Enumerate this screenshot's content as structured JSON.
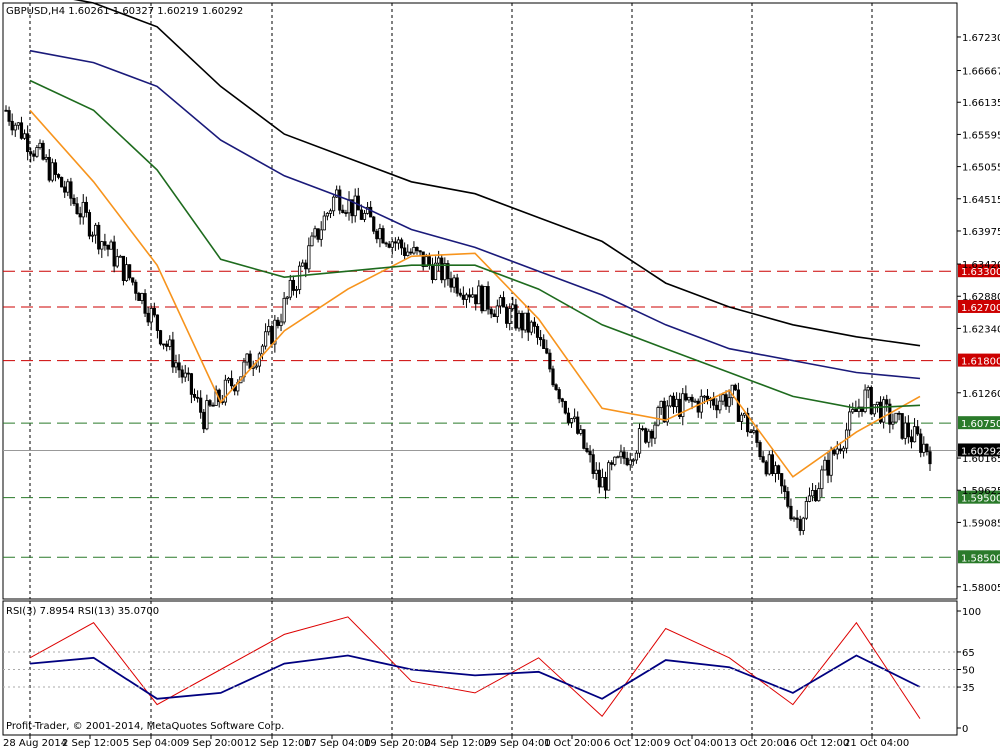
{
  "header": {
    "main_info": "GBPUSD,H4  1.60261 1.60327 1.60219 1.60292",
    "rsi_info": "RSI(3) 7.8954  RSI(13) 35.0700",
    "copyright": "Profit-Trader, © 2001-2014, MetaQuotes Software Corp."
  },
  "colors": {
    "candle": "#000000",
    "ma_orange": "#f7941d",
    "ma_green": "#1e6b1e",
    "ma_navy": "#1a1a7a",
    "ma_black": "#000000",
    "level_red": "#cc0000",
    "level_green": "#2a7a2a",
    "rsi_fast": "#dd0000",
    "rsi_slow": "#000080",
    "current_price_bg": "#000000"
  },
  "price_axis": {
    "ticks": [
      "1.67230",
      "1.66667",
      "1.66135",
      "1.65595",
      "1.65055",
      "1.64515",
      "1.63975",
      "1.63420",
      "1.62880",
      "1.62340",
      "1.61260",
      "1.60165",
      "1.59625",
      "1.59085",
      "1.58005"
    ],
    "levels_red": [
      "1.63300",
      "1.62700",
      "1.61800"
    ],
    "levels_green": [
      "1.60750",
      "1.59500",
      "1.58500"
    ],
    "current_price": "1.60292"
  },
  "rsi_axis": {
    "ticks": [
      "100",
      "65",
      "50",
      "35",
      "0"
    ]
  },
  "time_axis": {
    "labels": [
      "28 Aug 2014",
      "2 Sep 12:00",
      "5 Sep 04:00",
      "9 Sep 20:00",
      "12 Sep 12:00",
      "17 Sep 04:00",
      "19 Sep 20:00",
      "24 Sep 12:00",
      "29 Sep 04:00",
      "1 Oct 20:00",
      "6 Oct 12:00",
      "9 Oct 04:00",
      "13 Oct 20:00",
      "16 Oct 12:00",
      "21 Oct 04:00"
    ]
  },
  "chart_data": {
    "type": "line",
    "symbol": "GBPUSD",
    "timeframe": "H4",
    "ohlc_last": {
      "open": 1.60261,
      "high": 1.60327,
      "low": 1.60219,
      "close": 1.60292
    },
    "ylim": [
      1.578,
      1.678
    ],
    "x": [
      "28 Aug 2014",
      "2 Sep 12:00",
      "5 Sep 04:00",
      "9 Sep 20:00",
      "12 Sep 12:00",
      "17 Sep 04:00",
      "19 Sep 20:00",
      "24 Sep 12:00",
      "29 Sep 04:00",
      "1 Oct 20:00",
      "6 Oct 12:00",
      "9 Oct 04:00",
      "13 Oct 20:00",
      "16 Oct 12:00",
      "21 Oct 04:00"
    ],
    "price_close_approx": [
      1.66,
      1.645,
      1.63,
      1.6085,
      1.622,
      1.646,
      1.637,
      1.63,
      1.623,
      1.597,
      1.61,
      1.612,
      1.591,
      1.612,
      1.6029
    ],
    "series": [
      {
        "name": "MA orange",
        "values": [
          1.66,
          1.648,
          1.634,
          1.611,
          1.623,
          1.63,
          1.6355,
          1.636,
          1.625,
          1.61,
          1.608,
          1.613,
          1.5985,
          1.606,
          1.612
        ]
      },
      {
        "name": "MA green",
        "values": [
          1.665,
          1.66,
          1.65,
          1.635,
          1.632,
          1.633,
          1.634,
          1.634,
          1.63,
          1.624,
          1.62,
          1.616,
          1.612,
          1.61,
          1.6105
        ]
      },
      {
        "name": "MA navy",
        "values": [
          1.67,
          1.668,
          1.664,
          1.655,
          1.649,
          1.645,
          1.64,
          1.637,
          1.633,
          1.629,
          1.624,
          1.62,
          1.618,
          1.616,
          1.615
        ]
      },
      {
        "name": "MA black",
        "values": [
          1.68,
          1.678,
          1.674,
          1.664,
          1.656,
          1.652,
          1.648,
          1.646,
          1.642,
          1.638,
          1.631,
          1.627,
          1.624,
          1.622,
          1.6205
        ]
      }
    ],
    "rsi": {
      "ylim": [
        0,
        100
      ],
      "levels": [
        65,
        50,
        35
      ],
      "series": [
        {
          "name": "RSI(3)",
          "values": [
            60,
            90,
            20,
            50,
            80,
            95,
            40,
            30,
            60,
            10,
            85,
            60,
            20,
            90,
            8
          ]
        },
        {
          "name": "RSI(13)",
          "values": [
            55,
            60,
            25,
            30,
            55,
            62,
            50,
            45,
            48,
            25,
            58,
            52,
            30,
            62,
            35
          ]
        }
      ]
    }
  }
}
